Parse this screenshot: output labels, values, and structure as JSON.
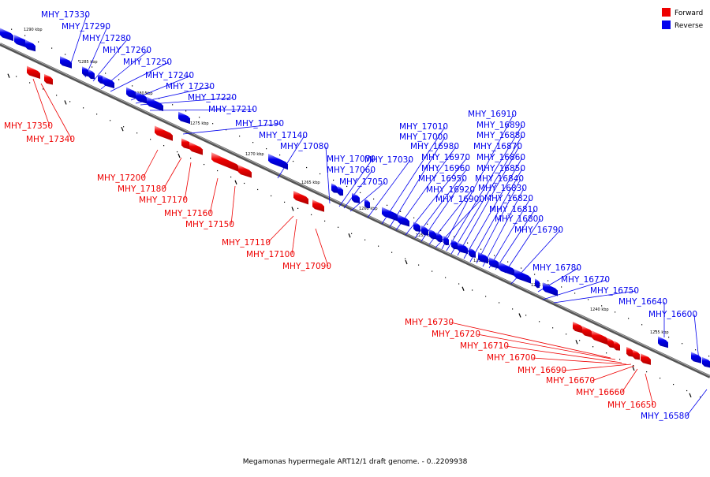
{
  "caption": "Megamonas hypermegale ART12/1 draft genome. - 0..2209938",
  "legend": [
    {
      "label": "Forward",
      "color": "#ee0000"
    },
    {
      "label": "Reverse",
      "color": "#0000ee"
    }
  ],
  "colors": {
    "forward": "#ee0000",
    "reverse": "#0000ee",
    "backbone": "#888888"
  },
  "ticks": [
    "1290 kbp",
    "1285 kbp",
    "1280 kbp",
    "1275 kbp",
    "1270 kbp",
    "1265 kbp",
    "1260 kbp",
    "1255 kbp",
    "1250 kbp",
    "1245 kbp",
    "1240 kbp",
    "1235 kbp"
  ],
  "reverse_labels": [
    "MHY_17330",
    "MHY_17290",
    "MHY_17280",
    "MHY_17260",
    "MHY_17250",
    "MHY_17240",
    "MHY_17230",
    "MHY_17220",
    "MHY_17210",
    "MHY_17190",
    "MHY_17140",
    "MHY_17080",
    "MHY_17070",
    "MHY_17060",
    "MHY_17050",
    "MHY_17030",
    "MHY_17010",
    "MHY_17000",
    "MHY_16980",
    "MHY_16970",
    "MHY_16960",
    "MHY_16950",
    "MHY_16920",
    "MHY_16900",
    "MHY_16910",
    "MHY_16890",
    "MHY_16880",
    "MHY_16870",
    "MHY_16860",
    "MHY_16850",
    "MHY_16840",
    "MHY_16830",
    "MHY_16820",
    "MHY_16810",
    "MHY_16800",
    "MHY_16790",
    "MHY_16780",
    "MHY_16770",
    "MHY_16750",
    "MHY_16640",
    "MHY_16600",
    "MHY_16580"
  ],
  "forward_labels": [
    "MHY_17350",
    "MHY_17340",
    "MHY_17200",
    "MHY_17180",
    "MHY_17170",
    "MHY_17160",
    "MHY_17150",
    "MHY_17110",
    "MHY_17100",
    "MHY_17090",
    "MHY_16730",
    "MHY_16720",
    "MHY_16710",
    "MHY_16700",
    "MHY_16690",
    "MHY_16670",
    "MHY_16660",
    "MHY_16650"
  ]
}
